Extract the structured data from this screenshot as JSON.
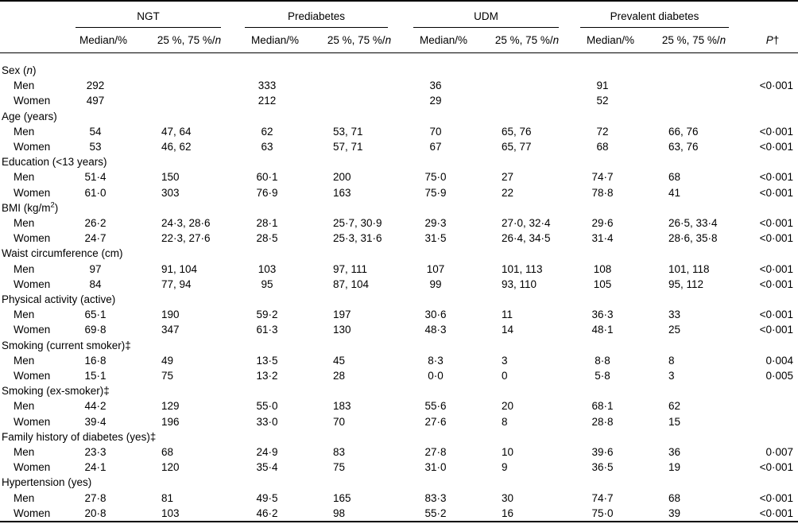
{
  "page": {
    "background": "#ffffff",
    "text_color": "#000000",
    "rule_color": "#000000"
  },
  "table": {
    "groups": [
      "NGT",
      "Prediabetes",
      "UDM",
      "Prevalent diabetes"
    ],
    "subheader": {
      "median": "Median/%",
      "quartiles": [
        {
          "text": "25 %, 75 %/"
        },
        {
          "text": "n",
          "italic": true
        }
      ],
      "p": [
        {
          "text": "P",
          "italic": true
        },
        {
          "text": "†"
        }
      ]
    },
    "sections": [
      {
        "label": [
          {
            "text": "Sex ("
          },
          {
            "text": "n",
            "italic": true
          },
          {
            "text": ")"
          }
        ],
        "rows": [
          {
            "label": "Men",
            "cells": [
              "292",
              "",
              "333",
              "",
              "36",
              "",
              "91",
              ""
            ],
            "p": "<0·001"
          },
          {
            "label": "Women",
            "cells": [
              "497",
              "",
              "212",
              "",
              "29",
              "",
              "52",
              ""
            ],
            "p": ""
          }
        ]
      },
      {
        "label": [
          {
            "text": "Age (years)"
          }
        ],
        "rows": [
          {
            "label": "Men",
            "cells": [
              "54",
              "47, 64",
              "62",
              "53, 71",
              "70",
              "65, 76",
              "72",
              "66, 76"
            ],
            "p": "<0·001"
          },
          {
            "label": "Women",
            "cells": [
              "53",
              "46, 62",
              "63",
              "57, 71",
              "67",
              "65, 77",
              "68",
              "63, 76"
            ],
            "p": "<0·001"
          }
        ]
      },
      {
        "label": [
          {
            "text": "Education (<13 years)"
          }
        ],
        "rows": [
          {
            "label": "Men",
            "cells": [
              "51·4",
              "150",
              "60·1",
              "200",
              "75·0",
              "27",
              "74·7",
              "68"
            ],
            "p": "<0·001"
          },
          {
            "label": "Women",
            "cells": [
              "61·0",
              "303",
              "76·9",
              "163",
              "75·9",
              "22",
              "78·8",
              "41"
            ],
            "p": "<0·001"
          }
        ]
      },
      {
        "label": [
          {
            "text": "BMI (kg/m"
          },
          {
            "text": "2",
            "sup": true
          },
          {
            "text": ")"
          }
        ],
        "rows": [
          {
            "label": "Men",
            "cells": [
              "26·2",
              "24·3, 28·6",
              "28·1",
              "25·7, 30·9",
              "29·3",
              "27·0, 32·4",
              "29·6",
              "26·5, 33·4"
            ],
            "p": "<0·001"
          },
          {
            "label": "Women",
            "cells": [
              "24·7",
              "22·3, 27·6",
              "28·5",
              "25·3, 31·6",
              "31·5",
              "26·4, 34·5",
              "31·4",
              "28·6, 35·8"
            ],
            "p": "<0·001"
          }
        ]
      },
      {
        "label": [
          {
            "text": "Waist circumference (cm)"
          }
        ],
        "rows": [
          {
            "label": "Men",
            "cells": [
              "97",
              "91, 104",
              "103",
              "97, 111",
              "107",
              "101, 113",
              "108",
              "101, 118"
            ],
            "p": "<0·001"
          },
          {
            "label": "Women",
            "cells": [
              "84",
              "77, 94",
              "95",
              "87, 104",
              "99",
              "93, 110",
              "105",
              "95, 112"
            ],
            "p": "<0·001"
          }
        ]
      },
      {
        "label": [
          {
            "text": "Physical activity (active)"
          }
        ],
        "rows": [
          {
            "label": "Men",
            "cells": [
              "65·1",
              "190",
              "59·2",
              "197",
              "30·6",
              "11",
              "36·3",
              "33"
            ],
            "p": "<0·001"
          },
          {
            "label": "Women",
            "cells": [
              "69·8",
              "347",
              "61·3",
              "130",
              "48·3",
              "14",
              "48·1",
              "25"
            ],
            "p": "<0·001"
          }
        ]
      },
      {
        "label": [
          {
            "text": "Smoking (current smoker)‡"
          }
        ],
        "rows": [
          {
            "label": "Men",
            "cells": [
              "16·8",
              "49",
              "13·5",
              "45",
              "8·3",
              "3",
              "8·8",
              "8"
            ],
            "p": "0·004"
          },
          {
            "label": "Women",
            "cells": [
              "15·1",
              "75",
              "13·2",
              "28",
              "0·0",
              "0",
              "5·8",
              "3"
            ],
            "p": "0·005"
          }
        ]
      },
      {
        "label": [
          {
            "text": "Smoking (ex-smoker)‡"
          }
        ],
        "rows": [
          {
            "label": "Men",
            "cells": [
              "44·2",
              "129",
              "55·0",
              "183",
              "55·6",
              "20",
              "68·1",
              "62"
            ],
            "p": ""
          },
          {
            "label": "Women",
            "cells": [
              "39·4",
              "196",
              "33·0",
              "70",
              "27·6",
              "8",
              "28·8",
              "15"
            ],
            "p": ""
          }
        ]
      },
      {
        "label": [
          {
            "text": "Family history of diabetes (yes)‡"
          }
        ],
        "rows": [
          {
            "label": "Men",
            "cells": [
              "23·3",
              "68",
              "24·9",
              "83",
              "27·8",
              "10",
              "39·6",
              "36"
            ],
            "p": "0·007"
          },
          {
            "label": "Women",
            "cells": [
              "24·1",
              "120",
              "35·4",
              "75",
              "31·0",
              "9",
              "36·5",
              "19"
            ],
            "p": "<0·001"
          }
        ]
      },
      {
        "label": [
          {
            "text": "Hypertension (yes)"
          }
        ],
        "rows": [
          {
            "label": "Men",
            "cells": [
              "27·8",
              "81",
              "49·5",
              "165",
              "83·3",
              "30",
              "74·7",
              "68"
            ],
            "p": "<0·001"
          },
          {
            "label": "Women",
            "cells": [
              "20·8",
              "103",
              "46·2",
              "98",
              "55·2",
              "16",
              "75·0",
              "39"
            ],
            "p": "<0·001"
          }
        ]
      }
    ]
  }
}
